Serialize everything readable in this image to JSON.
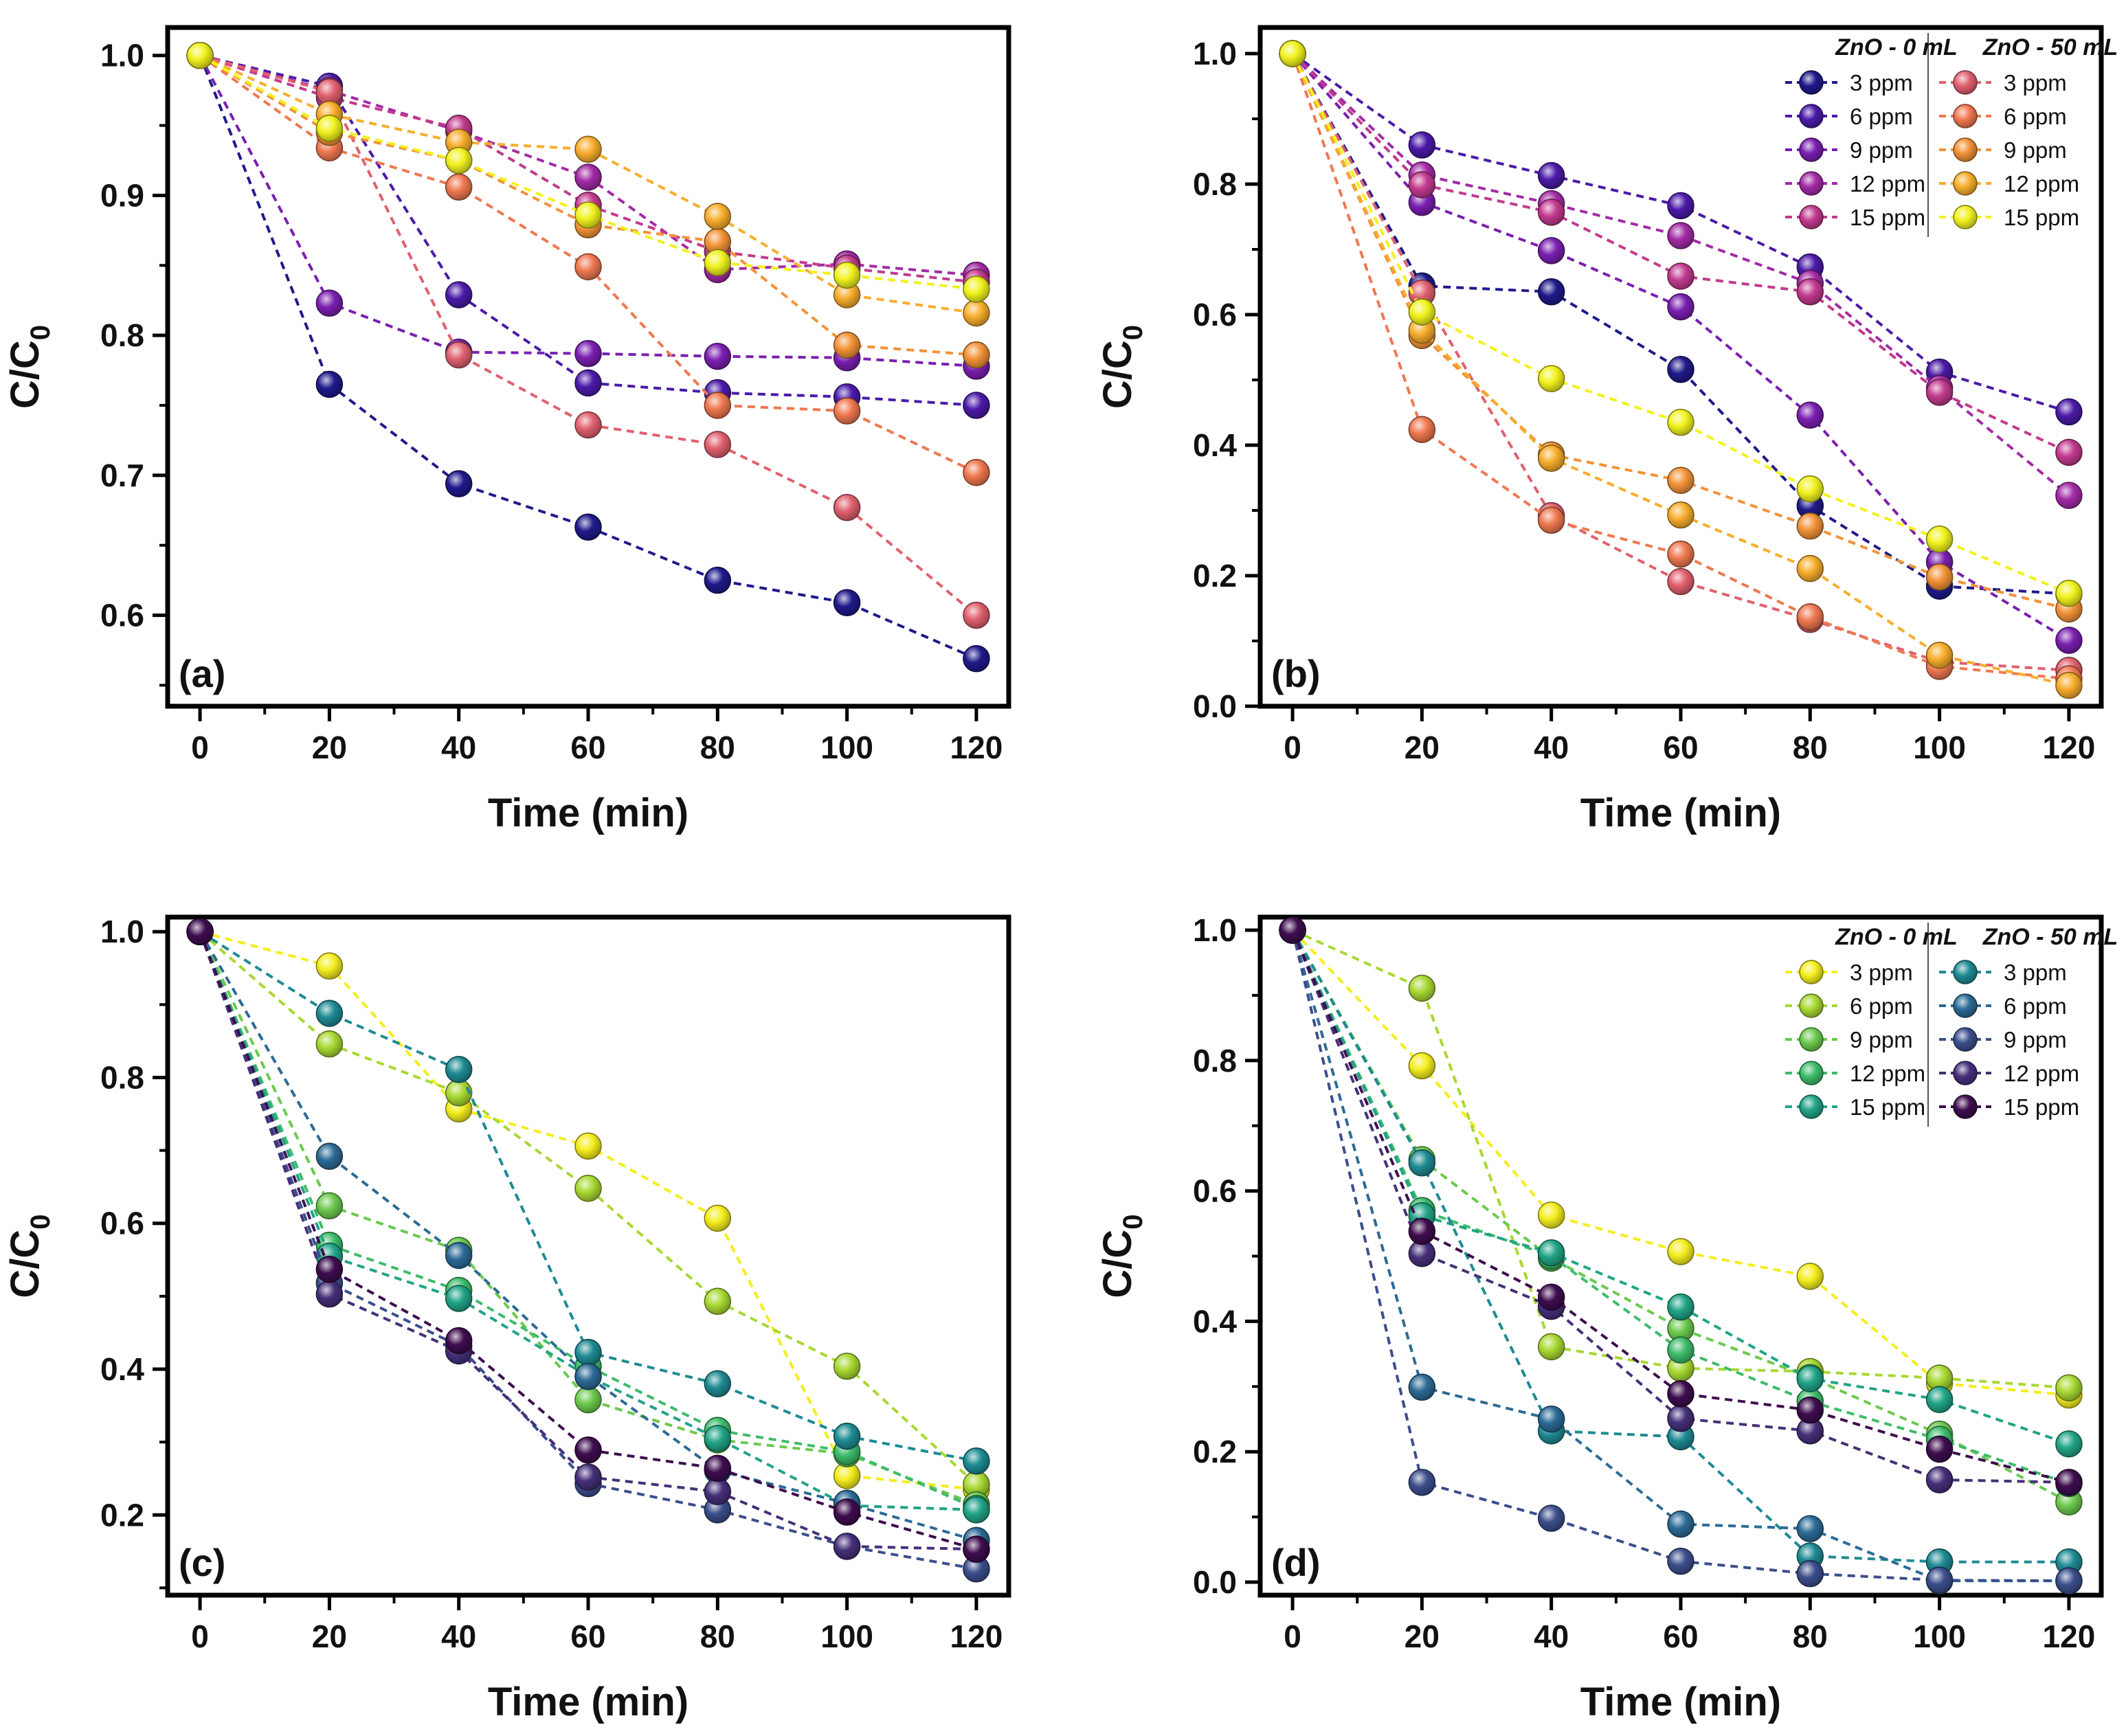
{
  "chart_data": [
    {
      "type": "line",
      "panel_label": "(a)",
      "xlabel": "Time (min)",
      "ylabel": {
        "main": "C/C",
        "sub": "0"
      },
      "xlim": [
        -5,
        125
      ],
      "ylim": [
        0.535,
        1.02
      ],
      "xticks": [
        0,
        20,
        40,
        60,
        80,
        100,
        120
      ],
      "yticks": [
        0.6,
        0.7,
        0.8,
        0.9,
        1.0
      ],
      "ytick_labels": [
        "0.6",
        "0.7",
        "0.8",
        "0.9",
        "1.0"
      ],
      "x": [
        0,
        20,
        40,
        60,
        80,
        100,
        120
      ],
      "legend": null,
      "series": [
        {
          "name": "ZnO - 0 mL 3 ppm",
          "color": "#1f1a8a",
          "values": [
            1.0,
            0.765,
            0.694,
            0.663,
            0.625,
            0.609,
            0.569
          ]
        },
        {
          "name": "ZnO - 0 mL 6 ppm",
          "color": "#4b1aa8",
          "values": [
            1.0,
            0.978,
            0.829,
            0.766,
            0.759,
            0.756,
            0.75
          ]
        },
        {
          "name": "ZnO - 0 mL 9 ppm",
          "color": "#7a1fb0",
          "values": [
            1.0,
            0.823,
            0.788,
            0.787,
            0.785,
            0.784,
            0.778
          ]
        },
        {
          "name": "ZnO - 0 mL 12 ppm",
          "color": "#a22ba6",
          "values": [
            1.0,
            0.975,
            0.946,
            0.913,
            0.847,
            0.851,
            0.843
          ]
        },
        {
          "name": "ZnO - 0 mL 15 ppm",
          "color": "#c23a8e",
          "values": [
            1.0,
            0.97,
            0.948,
            0.893,
            0.86,
            0.848,
            0.838
          ]
        },
        {
          "name": "ZnO - 50 mL 3 ppm",
          "color": "#e0606e",
          "values": [
            1.0,
            0.974,
            0.786,
            0.736,
            0.722,
            0.677,
            0.6
          ]
        },
        {
          "name": "ZnO - 50 mL 6 ppm",
          "color": "#ef7850",
          "values": [
            1.0,
            0.934,
            0.906,
            0.849,
            0.75,
            0.746,
            0.702
          ]
        },
        {
          "name": "ZnO - 50 mL 9 ppm",
          "color": "#f39238",
          "values": [
            1.0,
            0.945,
            0.925,
            0.879,
            0.867,
            0.793,
            0.786
          ]
        },
        {
          "name": "ZnO - 50 mL 12 ppm",
          "color": "#f7ad2c",
          "values": [
            1.0,
            0.958,
            0.938,
            0.933,
            0.885,
            0.829,
            0.816
          ]
        },
        {
          "name": "ZnO - 50 mL 15 ppm",
          "color": "#f1f21e",
          "values": [
            1.0,
            0.948,
            0.925,
            0.886,
            0.852,
            0.843,
            0.833
          ]
        }
      ]
    },
    {
      "type": "line",
      "panel_label": "(b)",
      "xlabel": "Time (min)",
      "ylabel": {
        "main": "C/C",
        "sub": "0"
      },
      "xlim": [
        -5,
        125
      ],
      "ylim": [
        0.0,
        1.04
      ],
      "xticks": [
        0,
        20,
        40,
        60,
        80,
        100,
        120
      ],
      "yticks": [
        0.0,
        0.2,
        0.4,
        0.6,
        0.8,
        1.0
      ],
      "ytick_labels": [
        "0.0",
        "0.2",
        "0.4",
        "0.6",
        "0.8",
        "1.0"
      ],
      "x": [
        0,
        20,
        40,
        60,
        80,
        100,
        120
      ],
      "legend": {
        "position": "top-right",
        "group_titles": [
          "ZnO - 0 mL",
          "ZnO - 50 mL"
        ],
        "entry_labels": [
          "3 ppm",
          "6 ppm",
          "9 ppm",
          "12 ppm",
          "15 ppm"
        ]
      },
      "series": [
        {
          "name": "ZnO - 0 mL 3 ppm",
          "color": "#1f1a8a",
          "values": [
            1.0,
            0.644,
            0.635,
            0.516,
            0.307,
            0.184,
            0.172
          ]
        },
        {
          "name": "ZnO - 0 mL 6 ppm",
          "color": "#4b1aa8",
          "values": [
            1.0,
            0.86,
            0.813,
            0.767,
            0.673,
            0.512,
            0.451
          ]
        },
        {
          "name": "ZnO - 0 mL 9 ppm",
          "color": "#7a1fb0",
          "values": [
            1.0,
            0.772,
            0.698,
            0.612,
            0.446,
            0.221,
            0.101
          ]
        },
        {
          "name": "ZnO - 0 mL 12 ppm",
          "color": "#a22ba6",
          "values": [
            1.0,
            0.814,
            0.77,
            0.721,
            0.648,
            0.487,
            0.323
          ]
        },
        {
          "name": "ZnO - 0 mL 15 ppm",
          "color": "#c23a8e",
          "values": [
            1.0,
            0.799,
            0.757,
            0.659,
            0.635,
            0.481,
            0.389
          ]
        },
        {
          "name": "ZnO - 50 mL 3 ppm",
          "color": "#e0606e",
          "values": [
            1.0,
            0.633,
            0.292,
            0.191,
            0.133,
            0.068,
            0.055
          ]
        },
        {
          "name": "ZnO - 50 mL 6 ppm",
          "color": "#ef7850",
          "values": [
            1.0,
            0.424,
            0.285,
            0.233,
            0.137,
            0.061,
            0.042
          ]
        },
        {
          "name": "ZnO - 50 mL 9 ppm",
          "color": "#f39238",
          "values": [
            1.0,
            0.568,
            0.385,
            0.346,
            0.276,
            0.198,
            0.149
          ]
        },
        {
          "name": "ZnO - 50 mL 12 ppm",
          "color": "#f7ad2c",
          "values": [
            1.0,
            0.576,
            0.38,
            0.293,
            0.211,
            0.078,
            0.032
          ]
        },
        {
          "name": "ZnO - 50 mL 15 ppm",
          "color": "#f1f21e",
          "values": [
            1.0,
            0.604,
            0.502,
            0.435,
            0.333,
            0.256,
            0.173
          ]
        }
      ]
    },
    {
      "type": "line",
      "panel_label": "(c)",
      "xlabel": "Time (min)",
      "ylabel": {
        "main": "C/C",
        "sub": "0"
      },
      "xlim": [
        -5,
        125
      ],
      "ylim": [
        0.09,
        1.02
      ],
      "xticks": [
        0,
        20,
        40,
        60,
        80,
        100,
        120
      ],
      "yticks": [
        0.2,
        0.4,
        0.6,
        0.8,
        1.0
      ],
      "ytick_labels": [
        "0.2",
        "0.4",
        "0.6",
        "0.8",
        "1.0"
      ],
      "x": [
        0,
        20,
        40,
        60,
        80,
        100,
        120
      ],
      "legend": null,
      "series": [
        {
          "name": "ZnO - 0 mL 3 ppm",
          "color": "#f4ee1e",
          "values": [
            1.0,
            0.953,
            0.757,
            0.706,
            0.607,
            0.254,
            0.235
          ]
        },
        {
          "name": "ZnO - 0 mL 6 ppm",
          "color": "#a8d832",
          "values": [
            1.0,
            0.846,
            0.779,
            0.648,
            0.493,
            0.404,
            0.242
          ]
        },
        {
          "name": "ZnO - 0 mL 9 ppm",
          "color": "#6cc94e",
          "values": [
            1.0,
            0.624,
            0.563,
            0.358,
            0.303,
            0.284,
            0.214
          ]
        },
        {
          "name": "ZnO - 0 mL 12 ppm",
          "color": "#3dbc6a",
          "values": [
            1.0,
            0.57,
            0.508,
            0.404,
            0.316,
            0.287,
            0.209
          ]
        },
        {
          "name": "ZnO - 0 mL 15 ppm",
          "color": "#21a486",
          "values": [
            1.0,
            0.555,
            0.497,
            0.39,
            0.305,
            0.213,
            0.207
          ]
        },
        {
          "name": "ZnO - 50 mL 3 ppm",
          "color": "#1e8a93",
          "values": [
            1.0,
            0.888,
            0.811,
            0.423,
            0.38,
            0.308,
            0.274
          ]
        },
        {
          "name": "ZnO - 50 mL 6 ppm",
          "color": "#2c6a95",
          "values": [
            1.0,
            0.692,
            0.556,
            0.39,
            0.261,
            0.216,
            0.165
          ]
        },
        {
          "name": "ZnO - 50 mL 9 ppm",
          "color": "#3b4e8c",
          "values": [
            1.0,
            0.518,
            0.432,
            0.243,
            0.207,
            0.157,
            0.126
          ]
        },
        {
          "name": "ZnO - 50 mL 12 ppm",
          "color": "#453079",
          "values": [
            1.0,
            0.503,
            0.425,
            0.252,
            0.232,
            0.157,
            0.153
          ]
        },
        {
          "name": "ZnO - 50 mL 15 ppm",
          "color": "#3e0d4e",
          "values": [
            1.0,
            0.537,
            0.439,
            0.289,
            0.264,
            0.204,
            0.153
          ]
        }
      ]
    },
    {
      "type": "line",
      "panel_label": "(d)",
      "xlabel": "Time (min)",
      "ylabel": {
        "main": "C/C",
        "sub": "0"
      },
      "xlim": [
        -5,
        125
      ],
      "ylim": [
        -0.02,
        1.02
      ],
      "xticks": [
        0,
        20,
        40,
        60,
        80,
        100,
        120
      ],
      "yticks": [
        0.0,
        0.2,
        0.4,
        0.6,
        0.8,
        1.0
      ],
      "ytick_labels": [
        "0.0",
        "0.2",
        "0.4",
        "0.6",
        "0.8",
        "1.0"
      ],
      "x": [
        0,
        20,
        40,
        60,
        80,
        100,
        120
      ],
      "legend": {
        "position": "top-right",
        "group_titles": [
          "ZnO - 0 mL",
          "ZnO - 50 mL"
        ],
        "entry_labels": [
          "3 ppm",
          "6 ppm",
          "9 ppm",
          "12 ppm",
          "15 ppm"
        ]
      },
      "series": [
        {
          "name": "ZnO - 0 mL 3 ppm",
          "color": "#f4ee1e",
          "values": [
            1.0,
            0.792,
            0.563,
            0.507,
            0.469,
            0.305,
            0.287
          ]
        },
        {
          "name": "ZnO - 0 mL 6 ppm",
          "color": "#a8d832",
          "values": [
            1.0,
            0.911,
            0.361,
            0.328,
            0.323,
            0.313,
            0.298
          ]
        },
        {
          "name": "ZnO - 0 mL 9 ppm",
          "color": "#6cc94e",
          "values": [
            1.0,
            0.648,
            0.497,
            0.389,
            0.314,
            0.227,
            0.123
          ]
        },
        {
          "name": "ZnO - 0 mL 12 ppm",
          "color": "#3dbc6a",
          "values": [
            1.0,
            0.57,
            0.5,
            0.356,
            0.277,
            0.219,
            0.151
          ]
        },
        {
          "name": "ZnO - 0 mL 15 ppm",
          "color": "#21a486",
          "values": [
            1.0,
            0.562,
            0.505,
            0.422,
            0.312,
            0.28,
            0.212
          ]
        },
        {
          "name": "ZnO - 50 mL 3 ppm",
          "color": "#1e8a93",
          "values": [
            1.0,
            0.643,
            0.232,
            0.223,
            0.04,
            0.031,
            0.031
          ]
        },
        {
          "name": "ZnO - 50 mL 6 ppm",
          "color": "#2c6a95",
          "values": [
            1.0,
            0.299,
            0.25,
            0.089,
            0.082,
            0.002,
            0.002
          ]
        },
        {
          "name": "ZnO - 50 mL 9 ppm",
          "color": "#3b4e8c",
          "values": [
            1.0,
            0.153,
            0.098,
            0.032,
            0.013,
            0.003,
            0.002
          ]
        },
        {
          "name": "ZnO - 50 mL 12 ppm",
          "color": "#453079",
          "values": [
            1.0,
            0.504,
            0.423,
            0.251,
            0.232,
            0.157,
            0.153
          ]
        },
        {
          "name": "ZnO - 50 mL 15 ppm",
          "color": "#3e0d4e",
          "values": [
            1.0,
            0.538,
            0.437,
            0.289,
            0.264,
            0.204,
            0.153
          ]
        }
      ]
    }
  ]
}
